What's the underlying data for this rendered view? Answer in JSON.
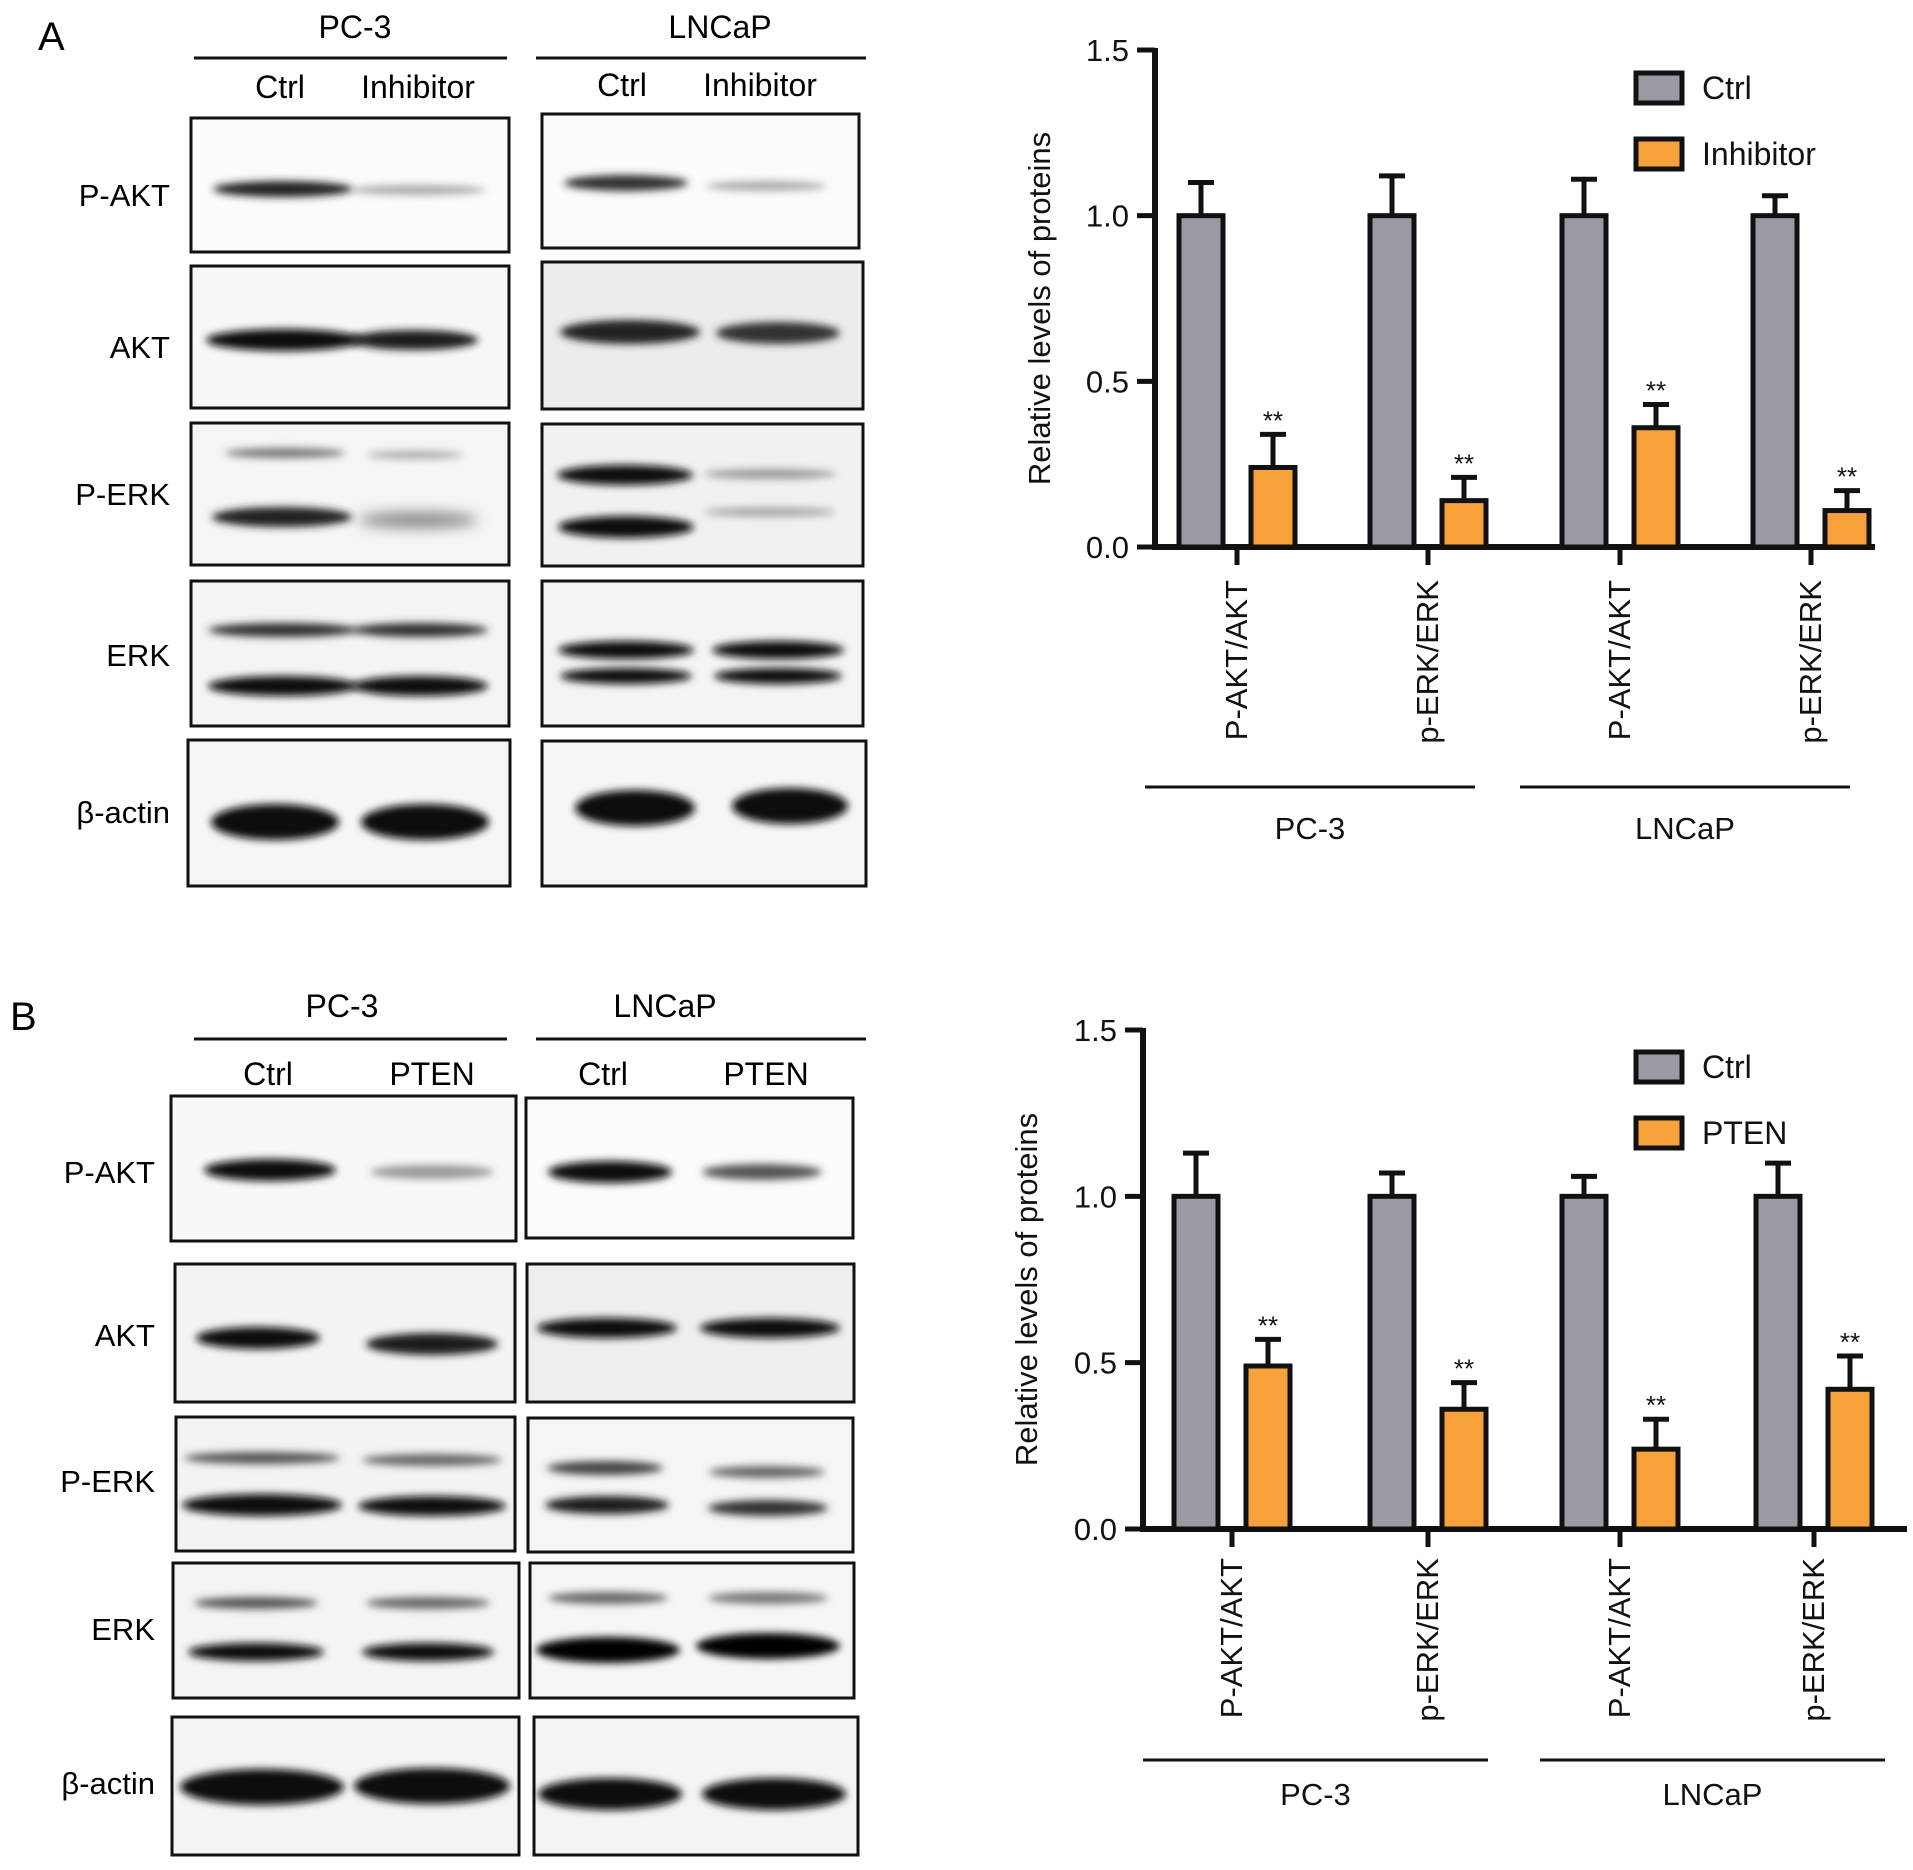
{
  "panels": [
    {
      "letter": "A",
      "blot": {
        "cell_lines": [
          "PC-3",
          "LNCaP"
        ],
        "lanes": [
          "Ctrl",
          "Inhibitor"
        ],
        "proteins": [
          "P-AKT",
          "AKT",
          "P-ERK",
          "ERK",
          "β-actin"
        ]
      }
    },
    {
      "letter": "B",
      "blot": {
        "cell_lines": [
          "PC-3",
          "LNCaP"
        ],
        "lanes": [
          "Ctrl",
          "PTEN"
        ],
        "proteins": [
          "P-AKT",
          "AKT",
          "P-ERK",
          "ERK",
          "β-actin"
        ]
      }
    }
  ],
  "chart_data": [
    {
      "type": "bar",
      "panel": "A",
      "ylabel": "Relative levels of proteins",
      "ylim": [
        0,
        1.5
      ],
      "yticks": [
        "0.0",
        "0.5",
        "1.0",
        "1.5"
      ],
      "categories": [
        "P-AKT/AKT",
        "p-ERK/ERK",
        "P-AKT/AKT",
        "p-ERK/ERK"
      ],
      "groups": [
        {
          "label": "PC-3",
          "categories": [
            0,
            1
          ]
        },
        {
          "label": "LNCaP",
          "categories": [
            2,
            3
          ]
        }
      ],
      "series": [
        {
          "name": "Ctrl",
          "color": "#9b9aa2",
          "values": [
            1.0,
            1.0,
            1.0,
            1.0
          ],
          "errors": [
            0.1,
            0.12,
            0.11,
            0.06
          ],
          "annotations": [
            "",
            "",
            "",
            ""
          ]
        },
        {
          "name": "Inhibitor",
          "color": "#f7a13b",
          "values": [
            0.24,
            0.14,
            0.36,
            0.11
          ],
          "errors": [
            0.1,
            0.07,
            0.07,
            0.06
          ],
          "annotations": [
            "**",
            "**",
            "**",
            "**"
          ]
        }
      ],
      "legend_position": "top-right"
    },
    {
      "type": "bar",
      "panel": "B",
      "ylabel": "Relative levels of proteins",
      "ylim": [
        0,
        1.5
      ],
      "yticks": [
        "0.0",
        "0.5",
        "1.0",
        "1.5"
      ],
      "categories": [
        "P-AKT/AKT",
        "p-ERK/ERK",
        "P-AKT/AKT",
        "p-ERK/ERK"
      ],
      "groups": [
        {
          "label": "PC-3",
          "categories": [
            0,
            1
          ]
        },
        {
          "label": "LNCaP",
          "categories": [
            2,
            3
          ]
        }
      ],
      "series": [
        {
          "name": "Ctrl",
          "color": "#9b9aa2",
          "values": [
            1.0,
            1.0,
            1.0,
            1.0
          ],
          "errors": [
            0.13,
            0.07,
            0.06,
            0.1
          ],
          "annotations": [
            "",
            "",
            "",
            ""
          ]
        },
        {
          "name": "PTEN",
          "color": "#f7a13b",
          "values": [
            0.49,
            0.36,
            0.24,
            0.42
          ],
          "errors": [
            0.08,
            0.08,
            0.09,
            0.1
          ],
          "annotations": [
            "**",
            "**",
            "**",
            "**"
          ]
        }
      ],
      "legend_position": "top-right"
    }
  ]
}
